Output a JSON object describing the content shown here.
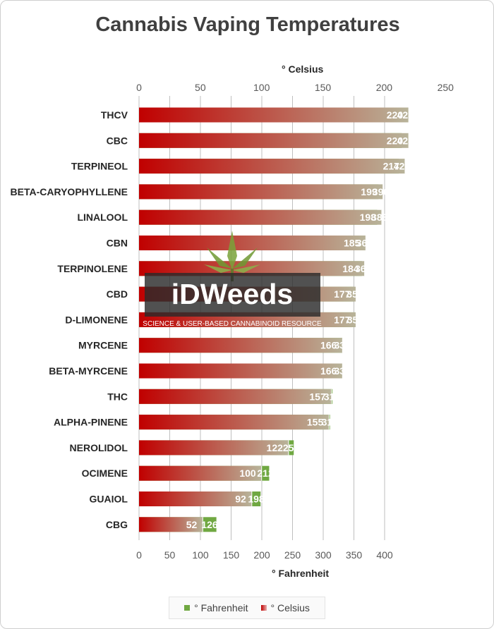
{
  "title": "Cannabis Vaping Temperatures",
  "watermark": {
    "brand": "iDWeeds",
    "tagline": "SCIENCE & USER-BASED CANNABINOID RESOURCE"
  },
  "legend": {
    "fahrenheit_label": "° Fahrenheit",
    "celsius_label": "° Celsius"
  },
  "colors": {
    "fahrenheit": "#70a842",
    "celsius_start": "#c00000",
    "celsius_end": "#b8b49a",
    "grid": "#bfbfbf"
  },
  "chart_data": {
    "type": "bar",
    "orientation": "horizontal",
    "title": "Cannabis Vaping Temperatures",
    "categories": [
      "THCV",
      "CBC",
      "TERPINEOL",
      "BETA-CARYOPHYLLENE",
      "LINALOOL",
      "CBN",
      "TERPINOLENE",
      "CBD",
      "D-LIMONENE",
      "MYRCENE",
      "BETA-MYRCENE",
      "THC",
      "ALPHA-PINENE",
      "NEROLIDOL",
      "OCIMENE",
      "GUAIOL",
      "CBG"
    ],
    "series": [
      {
        "name": "° Celsius",
        "values": [
          220,
          220,
          217,
          199,
          198,
          185,
          184,
          177,
          177,
          166,
          166,
          157,
          155,
          122,
          100,
          92,
          52
        ]
      },
      {
        "name": "° Fahrenheit",
        "values": [
          428,
          428,
          423,
          390,
          388,
          365,
          363,
          350,
          351,
          331,
          331,
          315,
          311,
          252,
          212,
          198,
          126
        ]
      }
    ],
    "x_top_label": "° Celsius",
    "x_top_ticks": [
      0,
      50,
      100,
      150,
      200,
      250
    ],
    "x_top_lim": [
      0,
      269
    ],
    "x_bottom_label": "° Fahrenheit",
    "x_bottom_ticks": [
      0,
      50,
      100,
      150,
      200,
      250,
      300,
      350,
      400
    ],
    "x_bottom_lim": [
      0,
      500
    ],
    "grid": true,
    "legend_position": "bottom"
  }
}
